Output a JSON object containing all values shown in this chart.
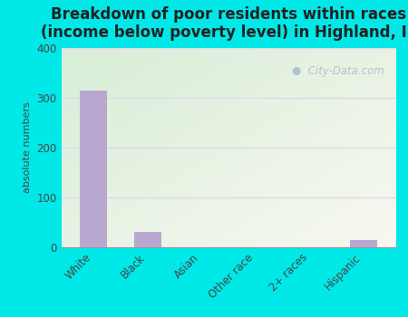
{
  "title": "Breakdown of poor residents within races\n(income below poverty level) in Highland, IL",
  "categories": [
    "White",
    "Black",
    "Asian",
    "Other race",
    "2+ races",
    "Hispanic"
  ],
  "values": [
    314,
    30,
    0,
    0,
    0,
    15
  ],
  "bar_color": "#b8a8d0",
  "ylabel": "absolute numbers",
  "ylim": [
    0,
    400
  ],
  "yticks": [
    0,
    100,
    200,
    300,
    400
  ],
  "bg_outer": "#00e8e8",
  "bg_top_left": "#d8eed8",
  "bg_bottom_right": "#f8f8f0",
  "grid_color": "#e0d8e8",
  "title_fontsize": 12,
  "axis_fontsize": 8,
  "tick_fontsize": 8.5,
  "watermark": "City-Data.com"
}
